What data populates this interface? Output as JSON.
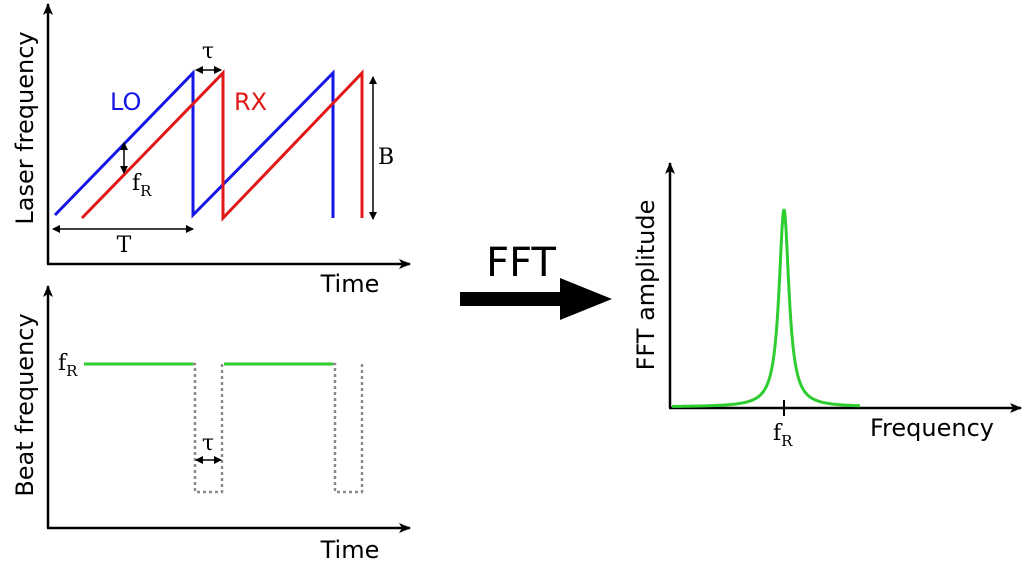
{
  "colors": {
    "axis": "#000000",
    "lo": "#1515e6",
    "rx": "#e01818",
    "beat": "#2fcc2f",
    "dotted": "#8a8a8a",
    "arrow": "#000000"
  },
  "icons": {
    "fft_arrow": "thick-right-arrow-icon"
  },
  "laser_panel": {
    "ylabel": "Laser frequency",
    "xlabel": "Time",
    "lo_label": "LO",
    "rx_label": "RX",
    "tau_label": "τ",
    "beat_freq_label": "f",
    "beat_freq_sub": "R",
    "period_label": "T",
    "bandwidth_label": "B"
  },
  "beat_panel": {
    "ylabel": "Beat frequency",
    "xlabel": "Time",
    "level_label": "f",
    "level_sub": "R",
    "tau_label": "τ"
  },
  "transform": {
    "label": "FFT"
  },
  "fft_panel": {
    "ylabel": "FFT amplitude",
    "xlabel": "Frequency",
    "peak_label": "f",
    "peak_sub": "R"
  }
}
